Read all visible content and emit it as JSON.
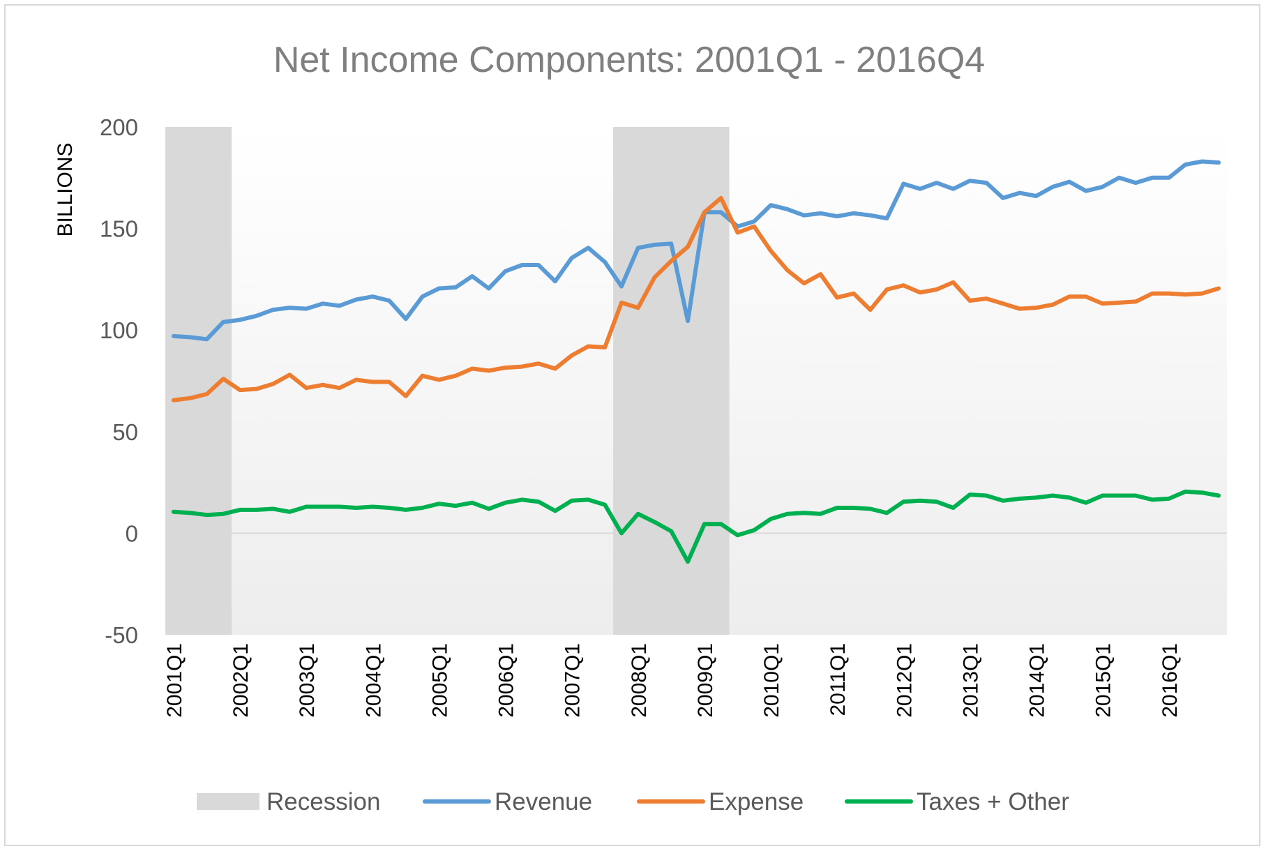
{
  "chart_data": {
    "type": "line",
    "title": "Net Income Components: 2001Q1 - 2016Q4",
    "ylabel": "BILLIONS",
    "xlabel": "",
    "ylim": [
      -50,
      200
    ],
    "yticks": [
      200,
      150,
      100,
      50,
      0,
      -50
    ],
    "x": [
      "2001Q1",
      "2001Q2",
      "2001Q3",
      "2001Q4",
      "2002Q1",
      "2002Q2",
      "2002Q3",
      "2002Q4",
      "2003Q1",
      "2003Q2",
      "2003Q3",
      "2003Q4",
      "2004Q1",
      "2004Q2",
      "2004Q3",
      "2004Q4",
      "2005Q1",
      "2005Q2",
      "2005Q3",
      "2005Q4",
      "2006Q1",
      "2006Q2",
      "2006Q3",
      "2006Q4",
      "2007Q1",
      "2007Q2",
      "2007Q3",
      "2007Q4",
      "2008Q1",
      "2008Q2",
      "2008Q3",
      "2008Q4",
      "2009Q1",
      "2009Q2",
      "2009Q3",
      "2009Q4",
      "2010Q1",
      "2010Q2",
      "2010Q3",
      "2010Q4",
      "2011Q1",
      "2011Q2",
      "2011Q3",
      "2011Q4",
      "2012Q1",
      "2012Q2",
      "2012Q3",
      "2012Q4",
      "2013Q1",
      "2013Q2",
      "2013Q3",
      "2013Q4",
      "2014Q1",
      "2014Q2",
      "2014Q3",
      "2014Q4",
      "2015Q1",
      "2015Q2",
      "2015Q3",
      "2015Q4",
      "2016Q1",
      "2016Q2",
      "2016Q3",
      "2016Q4"
    ],
    "xtick_labels": [
      "2001Q1",
      "2002Q1",
      "2003Q1",
      "2004Q1",
      "2005Q1",
      "2006Q1",
      "2007Q1",
      "2008Q1",
      "2009Q1",
      "2010Q1",
      "2011Q1",
      "2012Q1",
      "2013Q1",
      "2014Q1",
      "2015Q1",
      "2016Q1"
    ],
    "recessions": [
      {
        "start": "2001Q1",
        "end": "2001Q4"
      },
      {
        "start": "2007Q4",
        "end": "2009Q2"
      }
    ],
    "series": [
      {
        "name": "Revenue",
        "color": "#5b9bd5",
        "values": [
          97,
          96.5,
          95.5,
          104,
          105,
          107,
          110,
          111,
          110.5,
          113,
          112,
          115,
          116.5,
          114.5,
          105.5,
          116.5,
          120.5,
          121,
          126.5,
          120.5,
          129,
          132,
          132,
          124,
          135.5,
          140.5,
          133.5,
          121.5,
          140.5,
          142,
          142.5,
          104.5,
          158,
          158,
          151,
          153.5,
          161.5,
          159.5,
          156.5,
          157.5,
          156,
          157.5,
          156.5,
          155,
          172,
          169.5,
          172.5,
          169.5,
          173.5,
          172.5,
          165,
          167.5,
          166,
          170.5,
          173,
          168.5,
          170.5,
          175,
          172.5,
          175,
          175,
          181.5,
          183,
          182.5
        ]
      },
      {
        "name": "Expense",
        "color": "#ed7d31",
        "values": [
          65.5,
          66.5,
          68.5,
          76,
          70.5,
          71,
          73.5,
          78,
          71.5,
          73,
          71.5,
          75.5,
          74.5,
          74.5,
          67.5,
          77.5,
          75.5,
          77.5,
          81,
          80,
          81.5,
          82,
          83.5,
          81,
          87.5,
          92,
          91.5,
          113.5,
          111,
          126,
          134,
          141,
          158,
          165,
          148,
          151,
          139,
          129.5,
          123,
          127.5,
          116,
          118,
          110,
          120,
          122,
          118.5,
          120,
          123.5,
          114.5,
          115.5,
          113,
          110.5,
          111,
          112.5,
          116.5,
          116.5,
          113,
          113.5,
          114,
          118,
          118,
          117.5,
          118,
          120.5
        ]
      },
      {
        "name": "Taxes + Other",
        "color": "#00b050",
        "values": [
          10.5,
          10,
          9,
          9.5,
          11.5,
          11.5,
          12,
          10.5,
          13,
          13,
          13,
          12.5,
          13,
          12.5,
          11.5,
          12.5,
          14.5,
          13.5,
          15,
          12,
          15,
          16.5,
          15.5,
          11,
          16,
          16.5,
          14,
          0,
          9.5,
          5.5,
          1,
          -14,
          4.5,
          4.5,
          -1,
          1.5,
          7,
          9.5,
          10,
          9.5,
          12.5,
          12.5,
          12,
          10,
          15.5,
          16,
          15.5,
          12.5,
          19,
          18.5,
          16,
          17,
          17.5,
          18.5,
          17.5,
          15,
          18.5,
          18.5,
          18.5,
          16.5,
          17,
          20.5,
          20,
          18.5
        ]
      }
    ],
    "legend": {
      "position": "bottom",
      "items": [
        {
          "label": "Recession",
          "kind": "area",
          "color": "#d9d9d9"
        },
        {
          "label": "Revenue",
          "kind": "line",
          "color": "#5b9bd5"
        },
        {
          "label": "Expense",
          "kind": "line",
          "color": "#ed7d31"
        },
        {
          "label": "Taxes + Other",
          "kind": "line",
          "color": "#00b050"
        }
      ]
    },
    "grid": false
  }
}
